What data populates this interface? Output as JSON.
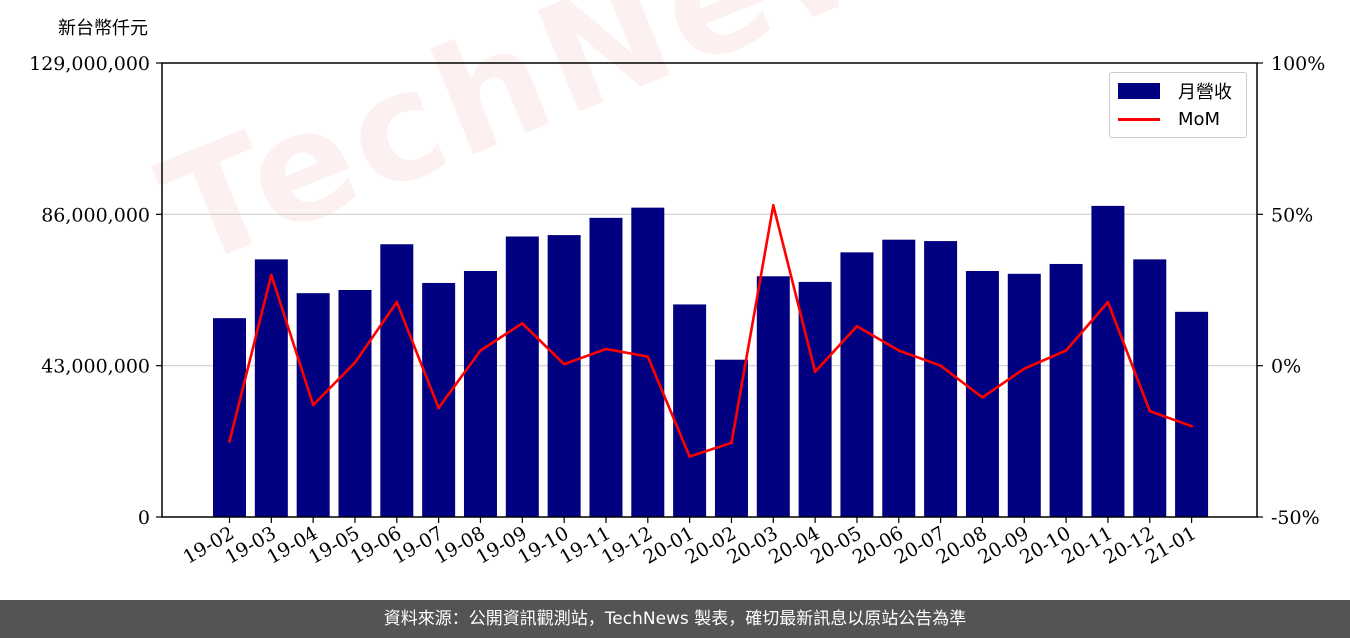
{
  "unit_label": "新台幣仟元",
  "footer_text": "資料來源：公開資訊觀測站，TechNews 製表，確切最新訊息以原站公告為準",
  "watermark": "TechNews",
  "legend": {
    "bar_label": "月營收",
    "line_label": "MoM"
  },
  "colors": {
    "bar": "#000080",
    "line": "#ff0000",
    "grid": "#d0d0d0"
  },
  "chart_data": {
    "type": "bar",
    "categories": [
      "19-02",
      "19-03",
      "19-04",
      "19-05",
      "19-06",
      "19-07",
      "19-08",
      "19-09",
      "19-10",
      "19-11",
      "19-12",
      "20-01",
      "20-02",
      "20-03",
      "20-04",
      "20-05",
      "20-06",
      "20-07",
      "20-08",
      "20-09",
      "20-10",
      "20-11",
      "20-12",
      "21-01"
    ],
    "series": [
      {
        "name": "月營收",
        "axis": "left",
        "type": "bar",
        "values": [
          56500000,
          73200000,
          63600000,
          64500000,
          77500000,
          66500000,
          69900000,
          79700000,
          80100000,
          85000000,
          87900000,
          60400000,
          44700000,
          68400000,
          66800000,
          75200000,
          78800000,
          78400000,
          69900000,
          69100000,
          71900000,
          88400000,
          73200000,
          58300000
        ]
      },
      {
        "name": "MoM",
        "axis": "right",
        "type": "line",
        "values": [
          -25,
          30,
          -13,
          1,
          21,
          -14,
          5,
          14,
          0.5,
          5.5,
          3,
          -30,
          -25.5,
          53,
          -2,
          13,
          5,
          0,
          -10.5,
          -1,
          5,
          21,
          -15,
          -20
        ]
      }
    ],
    "left_axis": {
      "ylim": [
        0,
        129000000
      ],
      "ticks": [
        0,
        43000000,
        86000000,
        129000000
      ],
      "tick_labels": [
        "0",
        "43,000,000",
        "86,000,000",
        "129,000,000"
      ]
    },
    "right_axis": {
      "ylim": [
        -50,
        100
      ],
      "ticks": [
        -50,
        0,
        50,
        100
      ],
      "tick_labels": [
        "-50%",
        "0%",
        "50%",
        "100%"
      ]
    },
    "grid": true,
    "legend_position": "top-right"
  }
}
